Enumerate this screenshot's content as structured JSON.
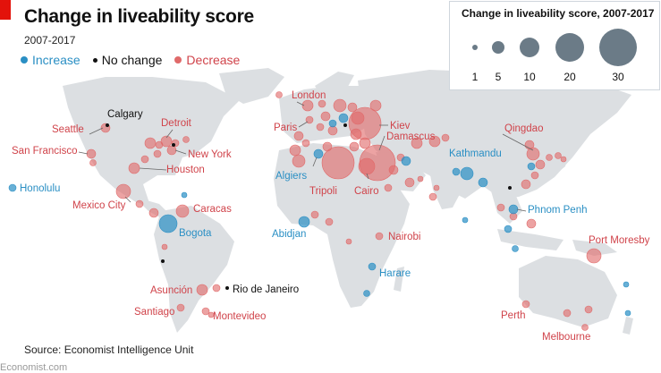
{
  "title": "Change in liveability score",
  "subtitle": "2007-2017",
  "legend": {
    "increase": {
      "label": "Increase",
      "color": "#2a8fc4"
    },
    "no_change": {
      "label": "No change",
      "color": "#111111"
    },
    "decrease": {
      "label": "Decrease",
      "color": "#e06a6a"
    }
  },
  "size_legend": {
    "title": "Change in liveability score, 2007-2017",
    "items": [
      {
        "label": "1",
        "value": 1
      },
      {
        "label": "5",
        "value": 5
      },
      {
        "label": "10",
        "value": 10
      },
      {
        "label": "20",
        "value": 20
      },
      {
        "label": "30",
        "value": 30
      }
    ],
    "color": "#6b7b87"
  },
  "cities": {
    "seattle": "Seattle",
    "calgary": "Calgary",
    "detroit": "Detroit",
    "san_francisco": "San Francisco",
    "new_york": "New York",
    "houston": "Houston",
    "honolulu": "Honolulu",
    "mexico_city": "Mexico City",
    "caracas": "Caracas",
    "bogota": "Bogota",
    "asuncion": "Asunción",
    "rio": "Rio de Janeiro",
    "santiago": "Santiago",
    "montevideo": "Montevideo",
    "london": "London",
    "paris": "Paris",
    "kiev": "Kiev",
    "damascus": "Damascus",
    "algiers": "Algiers",
    "tripoli": "Tripoli",
    "cairo": "Cairo",
    "abidjan": "Abidjan",
    "nairobi": "Nairobi",
    "harare": "Harare",
    "kathmandu": "Kathmandu",
    "qingdao": "Qingdao",
    "phnom_penh": "Phnom Penh",
    "port_moresby": "Port Moresby",
    "perth": "Perth",
    "melbourne": "Melbourne"
  },
  "source": "Source: Economist Intelligence Unit",
  "credit": "Economist.com"
}
